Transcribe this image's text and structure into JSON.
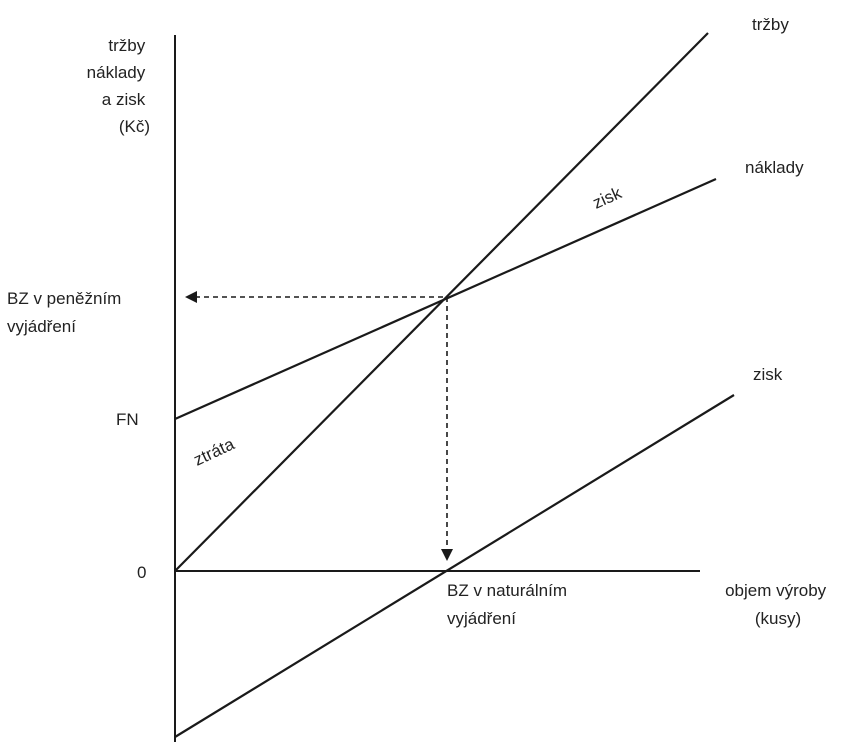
{
  "diagram": {
    "y_axis_title": [
      "tržby",
      "náklady",
      "a zisk",
      "(Kč)"
    ],
    "x_axis_title": [
      "objem výroby",
      "(kusy)"
    ],
    "origin_label": "0",
    "fixed_costs_label": "FN",
    "bep_money_label": [
      "BZ v peněžním",
      "vyjádření"
    ],
    "bep_units_label": [
      "BZ v naturálním",
      "vyjádření"
    ],
    "line_labels": {
      "revenue": "tržby",
      "costs": "náklady",
      "profit": "zisk"
    },
    "area_labels": {
      "profit": "zisk",
      "loss": "ztráta"
    }
  }
}
